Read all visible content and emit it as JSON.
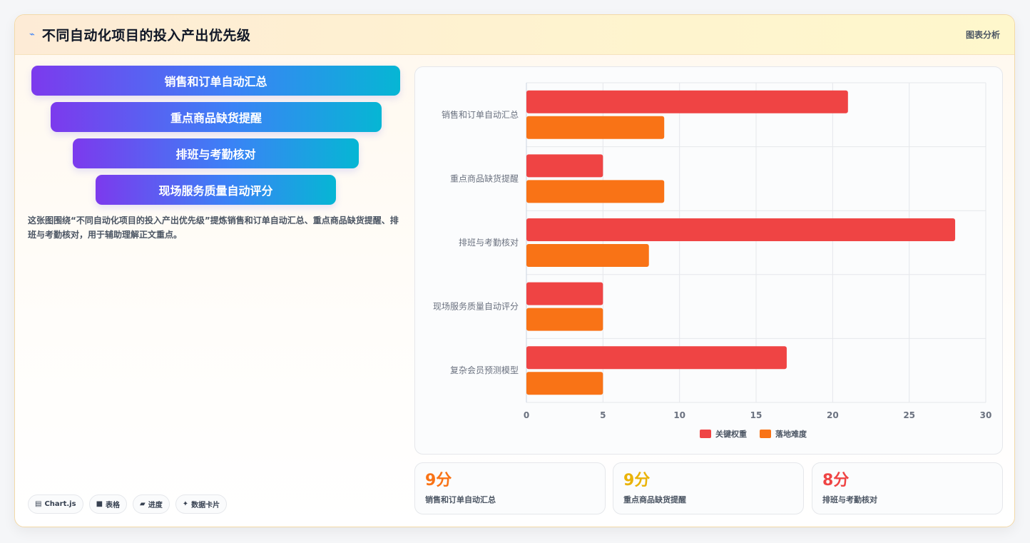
{
  "header": {
    "icon": "line-chart-icon",
    "title": "不同自动化项目的投入产出优先级",
    "right_label": "图表分析"
  },
  "funnel": {
    "items": [
      "销售和订单自动汇总",
      "重点商品缺货提醒",
      "排班与考勤核对",
      "现场服务质量自动评分"
    ]
  },
  "description": "这张图围绕“不同自动化项目的投入产出优先级”提炼销售和订单自动汇总、重点商品缺货提醒、排班与考勤核对，用于辅助理解正文重点。",
  "tags": [
    {
      "icon": "chart-icon",
      "glyph": "▤",
      "label": "Chart.js"
    },
    {
      "icon": "table-icon",
      "glyph": "■",
      "label": "表格"
    },
    {
      "icon": "progress-icon",
      "glyph": "▰",
      "label": "进度"
    },
    {
      "icon": "sparkle-icon",
      "glyph": "✦",
      "label": "数据卡片"
    }
  ],
  "chart_data": {
    "type": "bar",
    "orientation": "horizontal",
    "categories": [
      "销售和订单自动汇总",
      "重点商品缺货提醒",
      "排班与考勤核对",
      "现场服务质量自动评分",
      "复杂会员预测模型"
    ],
    "series": [
      {
        "name": "关键权重",
        "values": [
          21,
          5,
          28,
          5,
          17
        ],
        "color": "#ef4444"
      },
      {
        "name": "落地难度",
        "values": [
          9,
          9,
          8,
          5,
          5
        ],
        "color": "#f97316"
      }
    ],
    "xlim": [
      0,
      30
    ],
    "xticks": [
      "0",
      "5",
      "10",
      "15",
      "20",
      "25",
      "30"
    ],
    "grid": true,
    "legend": "bottom"
  },
  "kpis": [
    {
      "value": "9分",
      "label": "销售和订单自动汇总",
      "color": "#f97316"
    },
    {
      "value": "9分",
      "label": "重点商品缺货提醒",
      "color": "#eab308"
    },
    {
      "value": "8分",
      "label": "排班与考勤核对",
      "color": "#ef4444"
    }
  ]
}
